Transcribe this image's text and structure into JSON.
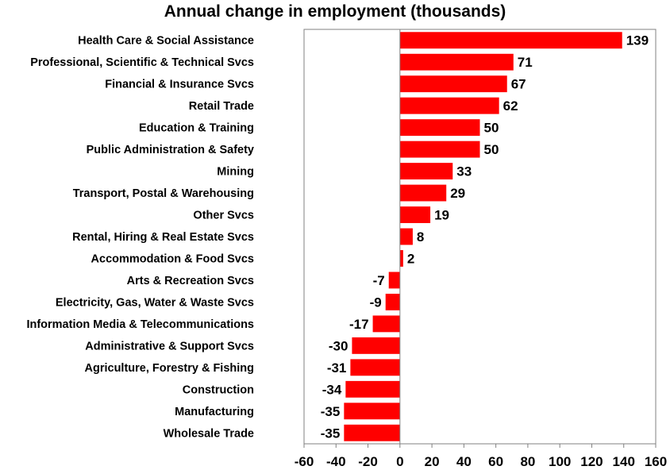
{
  "chart_data": {
    "type": "bar",
    "orientation": "horizontal",
    "title": "Annual change in employment (thousands)",
    "xlabel": "",
    "ylabel": "",
    "xlim": [
      -60,
      160
    ],
    "xticks": [
      -60,
      -40,
      -20,
      0,
      20,
      40,
      60,
      80,
      100,
      120,
      140,
      160
    ],
    "grid": false,
    "bar_color": "#ff0000",
    "categories": [
      "Health Care & Social Assistance",
      "Professional, Scientific & Technical Svcs",
      "Financial & Insurance Svcs",
      "Retail Trade",
      "Education & Training",
      "Public Administration & Safety",
      "Mining",
      "Transport, Postal & Warehousing",
      "Other Svcs",
      "Rental, Hiring & Real Estate Svcs",
      "Accommodation & Food Svcs",
      "Arts & Recreation Svcs",
      "Electricity, Gas, Water & Waste Svcs",
      "Information Media & Telecommunications",
      "Administrative & Support Svcs",
      "Agriculture, Forestry & Fishing",
      "Construction",
      "Manufacturing",
      "Wholesale Trade"
    ],
    "values": [
      139,
      71,
      67,
      62,
      50,
      50,
      33,
      29,
      19,
      8,
      2,
      -7,
      -9,
      -17,
      -30,
      -31,
      -34,
      -35,
      -35
    ]
  }
}
